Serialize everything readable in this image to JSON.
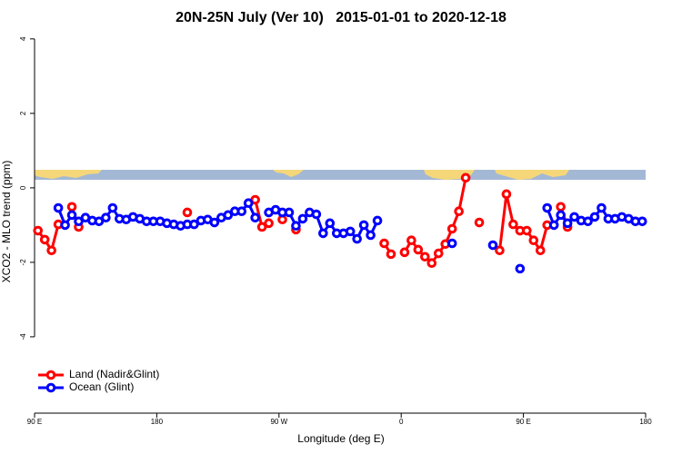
{
  "chart_data": {
    "type": "line",
    "title": "20N-25N July (Ver 10)   2015-01-01 to 2020-12-18",
    "xlabel": "Longitude (deg E)",
    "ylabel": "XCO2 - MLO trend (ppm)",
    "x": [
      92.5,
      97.5,
      102.5,
      107.5,
      112.5,
      117.5,
      122.5,
      127.5,
      132.5,
      137.5,
      142.5,
      147.5,
      152.5,
      157.5,
      162.5,
      167.5,
      172.5,
      177.5,
      182.5,
      187.5,
      192.5,
      197.5,
      202.5,
      207.5,
      212.5,
      217.5,
      222.5,
      227.5,
      232.5,
      237.5,
      242.5,
      247.5,
      252.5,
      257.5,
      262.5,
      267.5,
      272.5,
      277.5,
      282.5,
      287.5,
      292.5,
      297.5,
      302.5,
      307.5,
      312.5,
      317.5,
      322.5,
      327.5,
      332.5,
      337.5,
      342.5,
      347.5,
      352.5,
      357.5,
      362.5,
      367.5,
      372.5,
      377.5,
      382.5,
      387.5,
      392.5,
      397.5,
      402.5,
      407.5,
      412.5,
      417.5,
      422.5,
      427.5,
      432.5,
      437.5,
      442.5,
      447.5,
      452.5,
      457.5,
      462.5,
      467.5,
      472.5,
      477.5,
      482.5,
      487.5,
      492.5,
      497.5,
      502.5,
      507.5,
      512.5,
      517.5,
      522.5,
      527.5,
      532.5,
      537.5
    ],
    "series": [
      {
        "name": "Land (Nadir&Glint)",
        "color": "#ff0000",
        "values": [
          -1.15,
          -1.39,
          -1.68,
          -0.98,
          null,
          -0.51,
          -1.05,
          null,
          null,
          null,
          null,
          null,
          null,
          null,
          null,
          null,
          null,
          null,
          null,
          null,
          null,
          null,
          -0.66,
          null,
          null,
          null,
          null,
          null,
          null,
          null,
          null,
          null,
          -0.32,
          -1.05,
          -0.95,
          null,
          -0.85,
          null,
          -1.12,
          null,
          null,
          null,
          null,
          null,
          null,
          null,
          null,
          null,
          null,
          null,
          null,
          -1.49,
          -1.78,
          null,
          -1.73,
          -1.41,
          -1.66,
          -1.85,
          -2.02,
          -1.76,
          -1.51,
          -1.1,
          -0.63,
          0.27,
          null,
          -0.93,
          null,
          null,
          -1.68,
          -0.17,
          -0.98,
          -1.15,
          -1.15,
          -1.41,
          -1.68,
          -1.0,
          null,
          -0.51,
          -1.05,
          null,
          null,
          null,
          null,
          null,
          null,
          null,
          null,
          null,
          null,
          null
        ]
      },
      {
        "name": "Ocean (Glint)",
        "color": "#0000ff",
        "values": [
          null,
          null,
          null,
          -0.54,
          -1.0,
          -0.73,
          -0.9,
          -0.8,
          -0.88,
          -0.9,
          -0.8,
          -0.54,
          -0.83,
          -0.85,
          -0.78,
          -0.83,
          -0.9,
          -0.9,
          -0.9,
          -0.95,
          -0.98,
          -1.02,
          -0.98,
          -0.98,
          -0.88,
          -0.85,
          -0.93,
          -0.8,
          -0.73,
          -0.63,
          -0.63,
          -0.41,
          -0.8,
          null,
          -0.66,
          -0.59,
          -0.66,
          -0.66,
          -1.02,
          -0.83,
          -0.66,
          -0.71,
          -1.22,
          -0.95,
          -1.22,
          -1.22,
          -1.17,
          -1.37,
          -1.0,
          -1.27,
          -0.88,
          null,
          null,
          null,
          null,
          null,
          null,
          null,
          null,
          null,
          null,
          -1.49,
          null,
          null,
          null,
          null,
          null,
          -1.54,
          null,
          null,
          null,
          -2.17,
          null,
          null,
          null,
          -0.54,
          -1.0,
          -0.73,
          -0.95,
          -0.78,
          -0.88,
          -0.9,
          -0.78,
          -0.54,
          -0.83,
          -0.83,
          -0.78,
          -0.83,
          -0.9,
          -0.9
        ]
      }
    ],
    "xlim": [
      90,
      540
    ],
    "xticks": [
      {
        "value": 90,
        "label": "90 E"
      },
      180,
      {
        "value": 270,
        "label": "90 W"
      },
      {
        "value": 360,
        "label": "0"
      },
      {
        "value": 450,
        "label": "90 E"
      },
      {
        "value": 540,
        "label": "180"
      }
    ],
    "ylim": [
      -6.05,
      4.24
    ],
    "yticks": [
      4,
      2,
      0,
      -2,
      -4
    ],
    "grid": false,
    "legend": "bottom-left"
  }
}
